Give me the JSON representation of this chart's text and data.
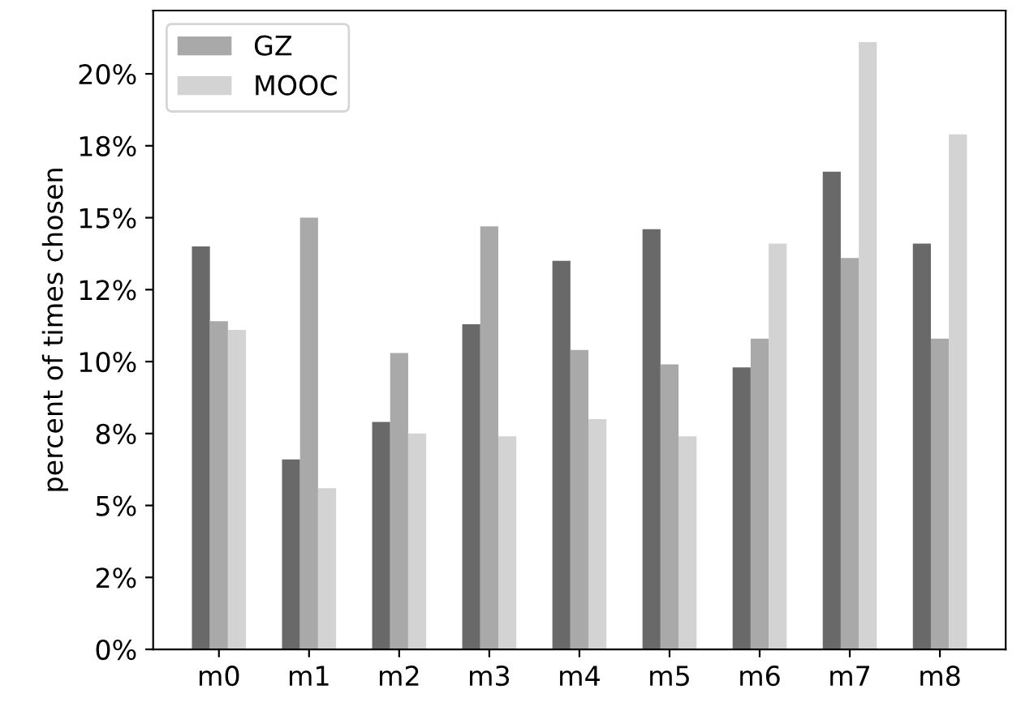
{
  "chart_data": {
    "type": "bar",
    "ylabel": "percent of times chosen",
    "categories": [
      "m0",
      "m1",
      "m2",
      "m3",
      "m4",
      "m5",
      "m6",
      "m7",
      "m8"
    ],
    "series": [
      {
        "color": "#696969",
        "values": [
          14.0,
          6.6,
          7.9,
          11.3,
          13.5,
          14.6,
          9.8,
          16.6,
          14.1
        ]
      },
      {
        "name": "GZ",
        "color": "#a9a9a9",
        "values": [
          11.4,
          15.0,
          10.3,
          14.7,
          10.4,
          9.9,
          10.8,
          13.6,
          10.8
        ]
      },
      {
        "name": "MOOC",
        "color": "#d3d3d3",
        "values": [
          11.1,
          5.6,
          7.5,
          7.4,
          8.0,
          7.4,
          14.1,
          21.1,
          17.9
        ]
      }
    ],
    "ylim": [
      0,
      22.2
    ],
    "yticks": [
      {
        "value": 0,
        "label": "0%"
      },
      {
        "value": 2.5,
        "label": "2%"
      },
      {
        "value": 5,
        "label": "5%"
      },
      {
        "value": 7.5,
        "label": "8%"
      },
      {
        "value": 10,
        "label": "10%"
      },
      {
        "value": 12.5,
        "label": "12%"
      },
      {
        "value": 15,
        "label": "15%"
      },
      {
        "value": 17.5,
        "label": "18%"
      },
      {
        "value": 20,
        "label": "20%"
      }
    ],
    "grid": false,
    "legend": "top left"
  }
}
